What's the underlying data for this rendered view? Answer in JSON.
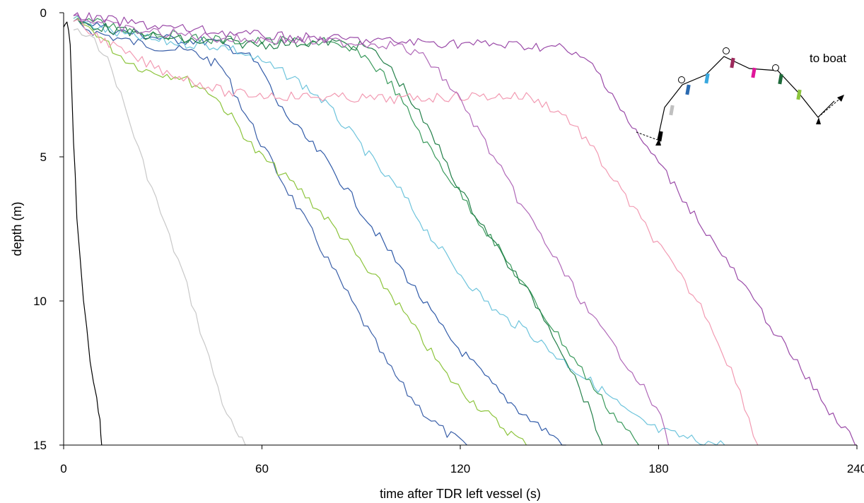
{
  "chart_data": {
    "type": "line",
    "xlabel": "time after TDR left vessel (s)",
    "ylabel": "depth (m)",
    "xlim": [
      0,
      240
    ],
    "ylim": [
      0,
      15
    ],
    "y_inverted": true,
    "x_ticks": [
      "0",
      "60",
      "120",
      "180",
      "240"
    ],
    "y_ticks": [
      "0",
      "5",
      "10",
      "15"
    ],
    "grid": false,
    "legend": "none",
    "series": [
      {
        "color": "#000000",
        "points": [
          [
            0,
            0.5
          ],
          [
            1,
            0.3
          ],
          [
            2,
            1.2
          ],
          [
            3,
            4.5
          ],
          [
            4,
            7
          ],
          [
            6,
            10
          ],
          [
            8,
            12
          ],
          [
            10,
            13.5
          ],
          [
            11,
            14.2
          ],
          [
            11.5,
            15
          ]
        ]
      },
      {
        "color": "#c8c8c8",
        "points": [
          [
            3,
            0.6
          ],
          [
            8,
            0.9
          ],
          [
            12,
            1.3
          ],
          [
            16,
            2.4
          ],
          [
            20,
            3.8
          ],
          [
            24,
            5.2
          ],
          [
            28,
            6.5
          ],
          [
            32,
            7.8
          ],
          [
            36,
            9
          ],
          [
            40,
            10.5
          ],
          [
            44,
            12
          ],
          [
            48,
            13.5
          ],
          [
            52,
            14.6
          ],
          [
            55,
            15
          ]
        ]
      },
      {
        "color": "#3a5fa8",
        "points": [
          [
            3,
            0.3
          ],
          [
            10,
            0.7
          ],
          [
            20,
            1
          ],
          [
            30,
            1.2
          ],
          [
            40,
            1.4
          ],
          [
            48,
            1.9
          ],
          [
            55,
            3.5
          ],
          [
            62,
            5
          ],
          [
            68,
            6.2
          ],
          [
            74,
            7.4
          ],
          [
            80,
            8.6
          ],
          [
            86,
            9.8
          ],
          [
            92,
            11
          ],
          [
            98,
            12.2
          ],
          [
            104,
            13.2
          ],
          [
            110,
            14
          ],
          [
            116,
            14.6
          ],
          [
            122,
            15
          ]
        ]
      },
      {
        "color": "#8cc43c",
        "points": [
          [
            3,
            0.2
          ],
          [
            10,
            0.7
          ],
          [
            16,
            1.4
          ],
          [
            20,
            1.7
          ],
          [
            25,
            2
          ],
          [
            35,
            2.2
          ],
          [
            45,
            2.8
          ],
          [
            52,
            3.8
          ],
          [
            58,
            4.8
          ],
          [
            66,
            5.6
          ],
          [
            72,
            6.2
          ],
          [
            80,
            7.2
          ],
          [
            86,
            8
          ],
          [
            92,
            9
          ],
          [
            98,
            9.6
          ],
          [
            104,
            10.6
          ],
          [
            110,
            11.6
          ],
          [
            116,
            12.6
          ],
          [
            124,
            13.5
          ],
          [
            132,
            14.3
          ],
          [
            140,
            15
          ]
        ]
      },
      {
        "color": "#2f5aa8",
        "points": [
          [
            4,
            0.2
          ],
          [
            15,
            0.6
          ],
          [
            30,
            0.9
          ],
          [
            45,
            1
          ],
          [
            55,
            1.4
          ],
          [
            60,
            2
          ],
          [
            65,
            3.2
          ],
          [
            72,
            4.2
          ],
          [
            80,
            5.2
          ],
          [
            86,
            6.2
          ],
          [
            92,
            7.2
          ],
          [
            98,
            8.2
          ],
          [
            104,
            9.2
          ],
          [
            110,
            10.2
          ],
          [
            116,
            11.2
          ],
          [
            124,
            12.2
          ],
          [
            132,
            13.2
          ],
          [
            140,
            14
          ],
          [
            147,
            14.6
          ],
          [
            152,
            15
          ]
        ]
      },
      {
        "color": "#6ec4dc",
        "points": [
          [
            3,
            0.2
          ],
          [
            15,
            0.7
          ],
          [
            30,
            1
          ],
          [
            50,
            1.2
          ],
          [
            60,
            1.7
          ],
          [
            70,
            2.3
          ],
          [
            78,
            3
          ],
          [
            84,
            3.8
          ],
          [
            90,
            4.6
          ],
          [
            96,
            5.5
          ],
          [
            102,
            6.2
          ],
          [
            110,
            7.6
          ],
          [
            118,
            8.8
          ],
          [
            126,
            9.8
          ],
          [
            132,
            10.5
          ],
          [
            140,
            11
          ],
          [
            148,
            11.8
          ],
          [
            156,
            12.5
          ],
          [
            164,
            13.2
          ],
          [
            172,
            14
          ],
          [
            180,
            14.5
          ],
          [
            190,
            14.8
          ],
          [
            200,
            15
          ]
        ]
      },
      {
        "color": "#3a9a5c",
        "points": [
          [
            4,
            0.2
          ],
          [
            20,
            0.6
          ],
          [
            40,
            0.9
          ],
          [
            60,
            1
          ],
          [
            76,
            1
          ],
          [
            90,
            1.4
          ],
          [
            98,
            2.3
          ],
          [
            104,
            3.4
          ],
          [
            110,
            4.6
          ],
          [
            116,
            5.6
          ],
          [
            122,
            6.6
          ],
          [
            128,
            7.6
          ],
          [
            134,
            8.6
          ],
          [
            140,
            9.6
          ],
          [
            146,
            10.6
          ],
          [
            152,
            11.6
          ],
          [
            158,
            12.6
          ],
          [
            164,
            13.6
          ],
          [
            170,
            14.4
          ],
          [
            174,
            15
          ]
        ]
      },
      {
        "color": "#24804a",
        "points": [
          [
            3,
            0.3
          ],
          [
            20,
            0.7
          ],
          [
            40,
            1
          ],
          [
            60,
            1.1
          ],
          [
            80,
            1
          ],
          [
            92,
            1.2
          ],
          [
            98,
            1.8
          ],
          [
            104,
            2.8
          ],
          [
            110,
            4
          ],
          [
            116,
            5.2
          ],
          [
            120,
            6.2
          ],
          [
            126,
            7.2
          ],
          [
            132,
            8.3
          ],
          [
            138,
            9.3
          ],
          [
            144,
            10.3
          ],
          [
            148,
            11.1
          ],
          [
            152,
            12
          ],
          [
            156,
            13
          ],
          [
            160,
            14
          ],
          [
            163,
            15
          ]
        ]
      },
      {
        "color": "#f29ab2",
        "points": [
          [
            3,
            0.3
          ],
          [
            10,
            0.8
          ],
          [
            20,
            1.5
          ],
          [
            30,
            2
          ],
          [
            40,
            2.4
          ],
          [
            50,
            2.8
          ],
          [
            70,
            2.9
          ],
          [
            100,
            3
          ],
          [
            120,
            2.9
          ],
          [
            140,
            2.9
          ],
          [
            146,
            3.2
          ],
          [
            152,
            3.6
          ],
          [
            158,
            4.4
          ],
          [
            164,
            5.4
          ],
          [
            170,
            6.4
          ],
          [
            176,
            7.4
          ],
          [
            182,
            8.4
          ],
          [
            188,
            9.4
          ],
          [
            194,
            10.4
          ],
          [
            198,
            11.4
          ],
          [
            202,
            12.4
          ],
          [
            206,
            13.6
          ],
          [
            210,
            15
          ]
        ]
      },
      {
        "color": "#b068b8",
        "points": [
          [
            3,
            0.1
          ],
          [
            20,
            0.6
          ],
          [
            50,
            0.9
          ],
          [
            80,
            1
          ],
          [
            100,
            1.1
          ],
          [
            110,
            1.6
          ],
          [
            118,
            2.7
          ],
          [
            124,
            3.8
          ],
          [
            130,
            5
          ],
          [
            136,
            6.2
          ],
          [
            142,
            7.3
          ],
          [
            148,
            8.4
          ],
          [
            154,
            9.5
          ],
          [
            160,
            10.6
          ],
          [
            166,
            11.5
          ],
          [
            172,
            12.4
          ],
          [
            178,
            13.5
          ],
          [
            182,
            14.4
          ],
          [
            183,
            15
          ]
        ]
      },
      {
        "color": "#9a4aa8",
        "points": [
          [
            3,
            0.1
          ],
          [
            30,
            0.5
          ],
          [
            60,
            0.8
          ],
          [
            100,
            1
          ],
          [
            130,
            1.1
          ],
          [
            150,
            1.2
          ],
          [
            160,
            1.8
          ],
          [
            166,
            2.8
          ],
          [
            172,
            4
          ],
          [
            180,
            5.2
          ],
          [
            186,
            6.2
          ],
          [
            192,
            7.2
          ],
          [
            198,
            8.2
          ],
          [
            204,
            9.2
          ],
          [
            210,
            10.2
          ],
          [
            216,
            11.2
          ],
          [
            222,
            12.2
          ],
          [
            228,
            13.2
          ],
          [
            234,
            14.2
          ],
          [
            239,
            14.8
          ],
          [
            240,
            15
          ]
        ]
      }
    ],
    "inset": {
      "label": "to boat",
      "tag_colors": [
        "#000000",
        "#c0c0c0",
        "#2a6ab0",
        "#39a8de",
        "#9c2a5c",
        "#e0169a",
        "#1e6a3a",
        "#8cc43c"
      ]
    }
  }
}
